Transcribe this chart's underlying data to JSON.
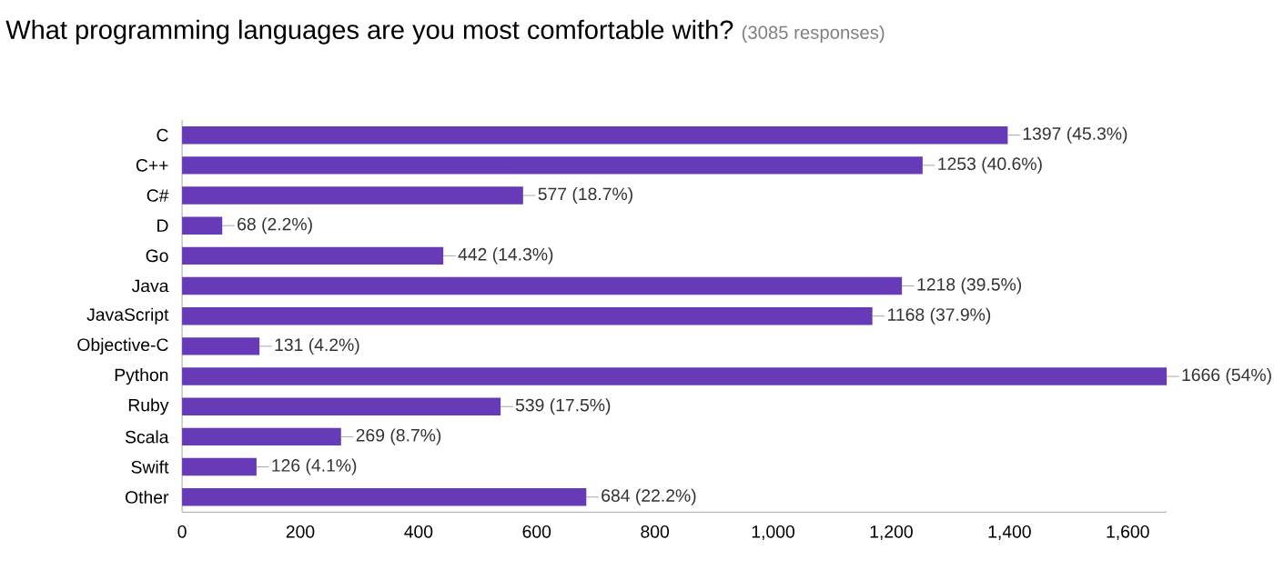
{
  "chart_data": {
    "type": "bar",
    "orientation": "horizontal",
    "title": "What programming languages are you most comfortable with?",
    "subtitle": "(3085 responses)",
    "categories": [
      "C",
      "C++",
      "C#",
      "D",
      "Go",
      "Java",
      "JavaScript",
      "Objective-C",
      "Python",
      "Ruby",
      "Scala",
      "Swift",
      "Other"
    ],
    "values": [
      1397,
      1253,
      577,
      68,
      442,
      1218,
      1168,
      131,
      1666,
      539,
      269,
      126,
      684
    ],
    "value_labels": [
      "1397 (45.3%)",
      "1253 (40.6%)",
      "577 (18.7%)",
      "68 (2.2%)",
      "442 (14.3%)",
      "1218 (39.5%)",
      "1168 (37.9%)",
      "131 (4.2%)",
      "1666 (54%)",
      "539 (17.5%)",
      "269 (8.7%)",
      "126 (4.1%)",
      "684 (22.2%)"
    ],
    "color": "#673ab7",
    "xlim": [
      0,
      1666
    ],
    "xticks": [
      0,
      200,
      400,
      600,
      800,
      {
        "value": 1000,
        "label": "1,000"
      },
      {
        "value": 1200,
        "label": "1,200"
      },
      {
        "value": 1400,
        "label": "1,400"
      },
      {
        "value": 1600,
        "label": "1,600"
      }
    ]
  }
}
